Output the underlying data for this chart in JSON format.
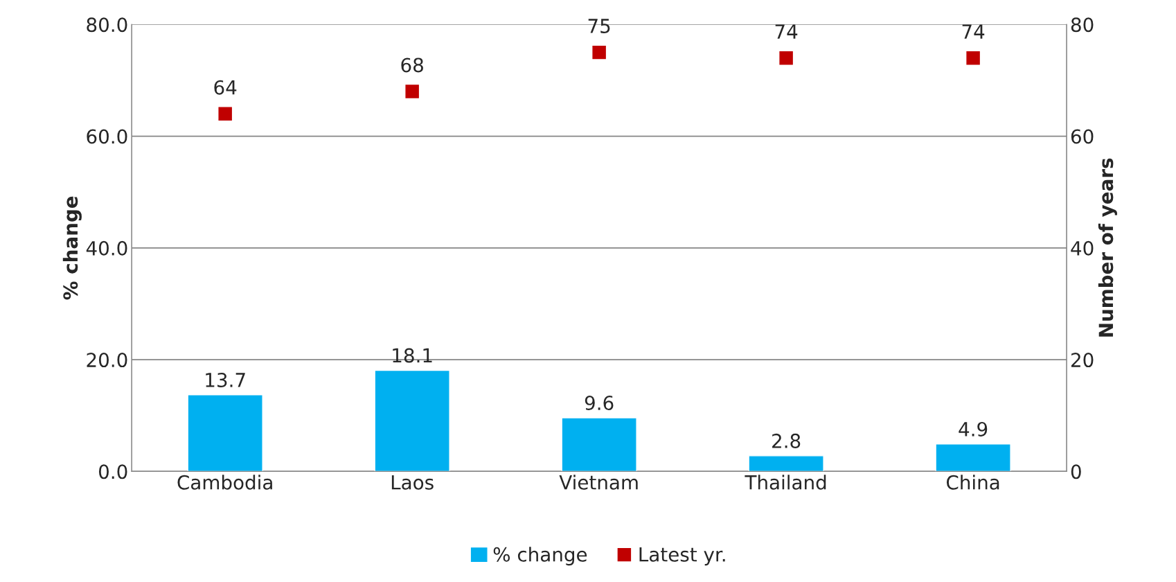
{
  "chart_data": {
    "type": "bar",
    "ylabel": "% change",
    "y2label": "Number of years",
    "categories": [
      "Cambodia",
      "Laos",
      "Vietnam",
      "Thailand",
      "China"
    ],
    "series": [
      {
        "name": "% change",
        "color": "#00b0f0",
        "values": [
          13.7,
          18.1,
          9.6,
          2.8,
          4.9
        ]
      },
      {
        "name": "Latest yr.",
        "type": "scatter",
        "axis": "y2",
        "marker": "square",
        "color": "#c00000",
        "values": [
          64,
          68,
          75,
          74,
          74
        ]
      }
    ],
    "ylim": [
      0,
      80
    ],
    "yticks": [
      {
        "value": 0,
        "label": "0.0"
      },
      {
        "value": 20,
        "label": "20.0"
      },
      {
        "value": 40,
        "label": "40.0"
      },
      {
        "value": 60,
        "label": "60.0"
      },
      {
        "value": 80,
        "label": "80.0"
      }
    ],
    "y2lim": [
      0,
      80
    ],
    "y2ticks": [
      0,
      20,
      40,
      60,
      80
    ],
    "grid": "y",
    "legend": "bottom",
    "data_labels": true
  }
}
